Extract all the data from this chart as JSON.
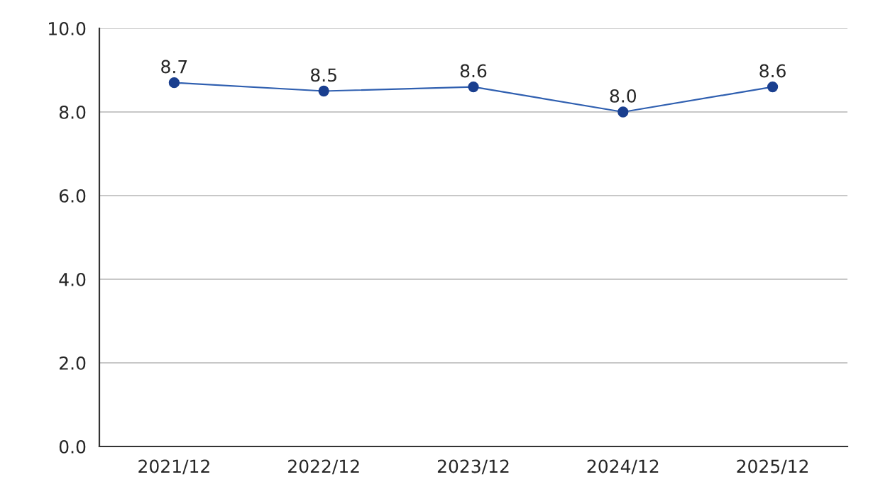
{
  "chart_data": {
    "type": "line",
    "categories": [
      "2021/12",
      "2022/12",
      "2023/12",
      "2024/12",
      "2025/12"
    ],
    "series": [
      {
        "color": "#2f5fb0",
        "values": [
          8.7,
          8.5,
          8.6,
          8.0,
          8.6
        ],
        "value_labels": [
          "8.7",
          "8.5",
          "8.6",
          "8.0",
          "8.6"
        ]
      }
    ],
    "marker": "circle",
    "ylim": [
      0,
      10
    ],
    "yticks": [
      {
        "value": 0,
        "label": "0.0"
      },
      {
        "value": 2,
        "label": "2.0"
      },
      {
        "value": 4,
        "label": "4.0"
      },
      {
        "value": 6,
        "label": "6.0"
      },
      {
        "value": 8,
        "label": "8.0"
      },
      {
        "value": 10,
        "label": "10.0"
      }
    ],
    "grid": "y"
  }
}
